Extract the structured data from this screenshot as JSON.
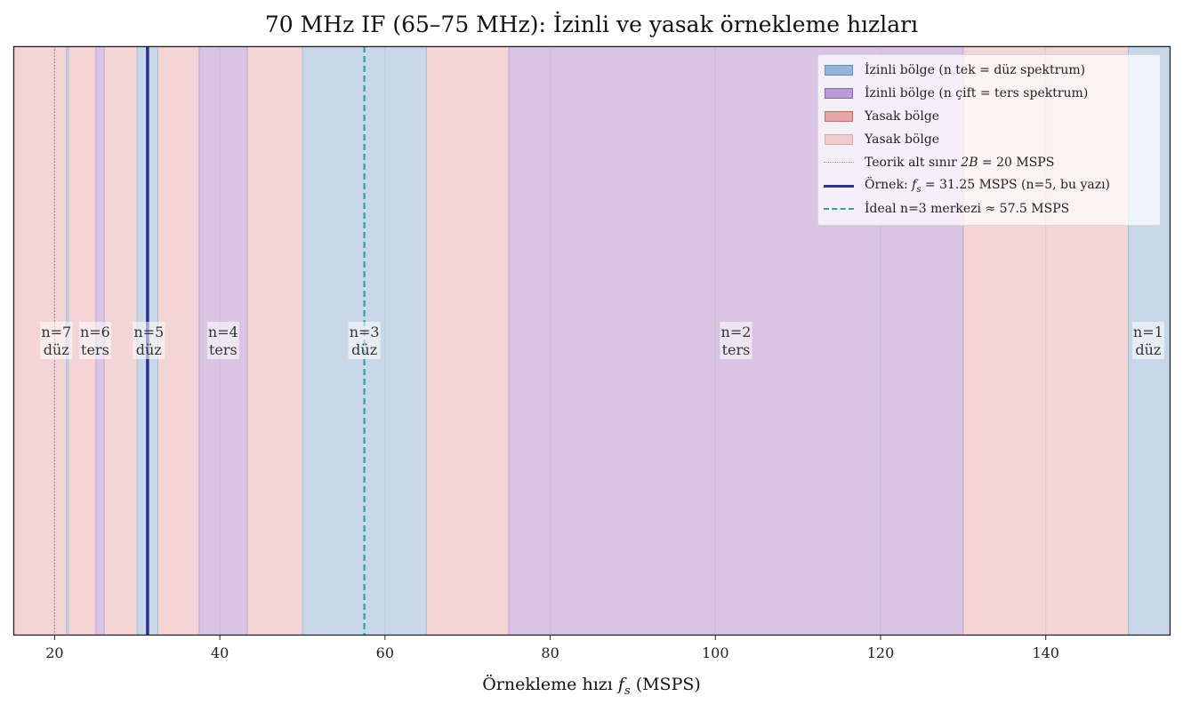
{
  "chart_data": {
    "type": "bar",
    "title": "70 MHz IF (65–75 MHz): İzinli ve yasak örnekleme hızları",
    "xlabel": "Örnekleme hızı",
    "xlabel_symbol": "f",
    "xlabel_sub": "s",
    "xlabel_unit": "(MSPS)",
    "xlim": [
      15,
      155
    ],
    "xticks": [
      "20",
      "40",
      "60",
      "80",
      "100",
      "120",
      "140"
    ],
    "grid": true,
    "legend_position": "top-right",
    "allowed_zones": [
      {
        "n_label": "n=7",
        "spectrum_label": "düz",
        "parity": "odd",
        "from": 21.43,
        "to": 21.67
      },
      {
        "n_label": "n=6",
        "spectrum_label": "ters",
        "parity": "even",
        "from": 25.0,
        "to": 26.0
      },
      {
        "n_label": "n=5",
        "spectrum_label": "düz",
        "parity": "odd",
        "from": 30.0,
        "to": 32.5
      },
      {
        "n_label": "n=4",
        "spectrum_label": "ters",
        "parity": "even",
        "from": 37.5,
        "to": 43.33
      },
      {
        "n_label": "n=3",
        "spectrum_label": "düz",
        "parity": "odd",
        "from": 50.0,
        "to": 65.0
      },
      {
        "n_label": "n=2",
        "spectrum_label": "ters",
        "parity": "even",
        "from": 75.0,
        "to": 130.0
      },
      {
        "n_label": "n=1",
        "spectrum_label": "düz",
        "parity": "odd",
        "from": 150.0,
        "to": 155.0
      }
    ],
    "zone_label_positions": [
      20.2,
      24.9,
      31.4,
      40.4,
      57.5,
      102.5,
      152.4
    ],
    "forbidden_zones": [
      {
        "from": 15.0,
        "to": 21.43
      },
      {
        "from": 21.67,
        "to": 25.0
      },
      {
        "from": 26.0,
        "to": 30.0
      },
      {
        "from": 32.5,
        "to": 37.5
      },
      {
        "from": 43.33,
        "to": 50.0
      },
      {
        "from": 65.0,
        "to": 75.0
      },
      {
        "from": 130.0,
        "to": 150.0
      }
    ],
    "lines": {
      "theoretical_min": 20,
      "example_fs": 31.25,
      "ideal_n3_center": 57.5
    },
    "legend": [
      {
        "kind": "patch",
        "color": "#93b5dc",
        "edge": "#5f8fc8",
        "label": "İzinli bölge (n tek = düz spektrum)"
      },
      {
        "kind": "patch",
        "color": "#b89cd6",
        "edge": "#8e63bf",
        "label": "İzinli bölge (n çift = ters spektrum)"
      },
      {
        "kind": "patch",
        "color": "#e8a5a5",
        "edge": "#d06a6a",
        "label": "Yasak bölge"
      },
      {
        "kind": "patch",
        "color": "#f0cccc",
        "edge": "#e3aaaa",
        "label": "Yasak bölge"
      },
      {
        "kind": "dotted",
        "color": "#999999",
        "label": "Teorik alt sınır 2B = 20 MSPS",
        "math_parts": [
          "Teorik alt sınır ",
          "2B",
          " = 20 MSPS"
        ]
      },
      {
        "kind": "solid",
        "color": "#2b3292",
        "label": "Örnek: fs = 31.25 MSPS (n=5, bu yazı)",
        "math_parts": [
          "Örnek: ",
          "f",
          "s",
          " = 31.25 MSPS (n=5, bu yazı)"
        ]
      },
      {
        "kind": "dashed",
        "color": "#3a9e9c",
        "label": "İdeal n=3 merkezi ≈ 57.5 MSPS"
      }
    ],
    "colors": {
      "odd_fill": "#c7d7e8",
      "even_fill": "#d9c5e3",
      "forbidden_fill": "#f4d5d5",
      "odd_edge": "#a9bfd9",
      "even_edge": "#c2a6d6",
      "forbidden_edge": "#e0a8b0",
      "example_line": "#2b3292",
      "ideal_line": "#3a9e9c",
      "theoretical_line": "#8c8c8c"
    }
  }
}
